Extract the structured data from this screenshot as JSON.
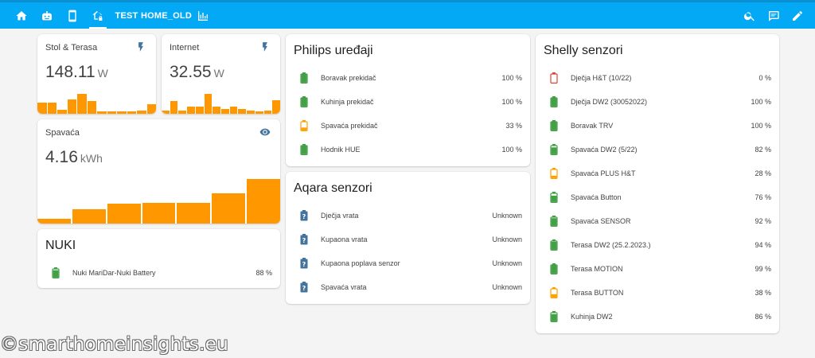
{
  "header": {
    "tabs": [
      {
        "name": "tab-home",
        "icon": "home-icon"
      },
      {
        "name": "tab-robot",
        "icon": "robot-icon"
      },
      {
        "name": "tab-phone",
        "icon": "cellphone-icon"
      },
      {
        "name": "tab-home-lock",
        "icon": "home-lock-icon",
        "active": true
      },
      {
        "name": "tab-test",
        "label": "TEST"
      },
      {
        "name": "tab-home-old",
        "label": "HOME_OLD"
      },
      {
        "name": "tab-chart",
        "icon": "bar-chart-icon"
      }
    ],
    "actions": [
      "search-icon",
      "assist-icon",
      "pencil-icon"
    ]
  },
  "power": {
    "stol": {
      "name": "Stol & Terasa",
      "value": "148.11",
      "unit": "W",
      "icon": "flash-icon",
      "history": [
        0.32,
        0.32,
        0.12,
        0.4,
        0.56,
        0.37,
        0.06,
        0.06,
        0.06,
        0.06,
        0.1,
        0.28
      ]
    },
    "internet": {
      "name": "Internet",
      "value": "32.55",
      "unit": "W",
      "icon": "flash-icon",
      "history": [
        0.1,
        0.36,
        0.1,
        0.2,
        0.2,
        0.56,
        0.2,
        0.14,
        0.2,
        0.14,
        0.1,
        0.06,
        0.08,
        0.38
      ]
    },
    "spavaca": {
      "name": "Spavaća",
      "value": "4.16",
      "unit": "kWh",
      "icon": "eye-icon",
      "history": [
        0.11,
        0.32,
        0.45,
        0.47,
        0.47,
        0.68,
        1.0
      ]
    }
  },
  "nuki": {
    "title": "NUKI",
    "items": [
      {
        "name": "Nuki MariDar-Nuki Battery",
        "value": "88 %",
        "level": 0.88
      }
    ]
  },
  "philips": {
    "title": "Philips uređaji",
    "items": [
      {
        "name": "Boravak prekidač",
        "value": "100 %",
        "level": 1.0
      },
      {
        "name": "Kuhinja prekidač",
        "value": "100 %",
        "level": 1.0
      },
      {
        "name": "Spavaća prekidač",
        "value": "33 %",
        "level": 0.33
      },
      {
        "name": "Hodnik HUE",
        "value": "100 %",
        "level": 1.0
      }
    ]
  },
  "aqara": {
    "title": "Aqara senzori",
    "items": [
      {
        "name": "Dječja vrata",
        "value": "Unknown"
      },
      {
        "name": "Kupaona vrata",
        "value": "Unknown"
      },
      {
        "name": "Kupaona poplava senzor",
        "value": "Unknown"
      },
      {
        "name": "Spavaća vrata",
        "value": "Unknown"
      }
    ]
  },
  "shelly": {
    "title": "Shelly senzori",
    "items": [
      {
        "name": "Dječja H&T (10/22)",
        "value": "0 %",
        "level": 0.0
      },
      {
        "name": "Dječja DW2 (30052022)",
        "value": "100 %",
        "level": 1.0
      },
      {
        "name": "Boravak TRV",
        "value": "100 %",
        "level": 1.0
      },
      {
        "name": "Spavaća DW2 (5/22)",
        "value": "82 %",
        "level": 0.82
      },
      {
        "name": "Spavaća PLUS H&T",
        "value": "28 %",
        "level": 0.28
      },
      {
        "name": "Spavaća Button",
        "value": "76 %",
        "level": 0.76
      },
      {
        "name": "Spavaća SENSOR",
        "value": "92 %",
        "level": 0.92
      },
      {
        "name": "Terasa DW2 (25.2.2023.)",
        "value": "94 %",
        "level": 0.94
      },
      {
        "name": "Terasa MOTION",
        "value": "99 %",
        "level": 0.99
      },
      {
        "name": "Terasa BUTTON",
        "value": "38 %",
        "level": 0.38
      },
      {
        "name": "Kuhinja DW2",
        "value": "86 %",
        "level": 0.86
      }
    ]
  },
  "colors": {
    "header": "#03a9f4",
    "bar": "#ff9800",
    "good": "#43a047",
    "medium": "#ffa000",
    "low": "#db4437",
    "unknown": "#44739e"
  },
  "watermark": "©smarthomeinsights.eu"
}
